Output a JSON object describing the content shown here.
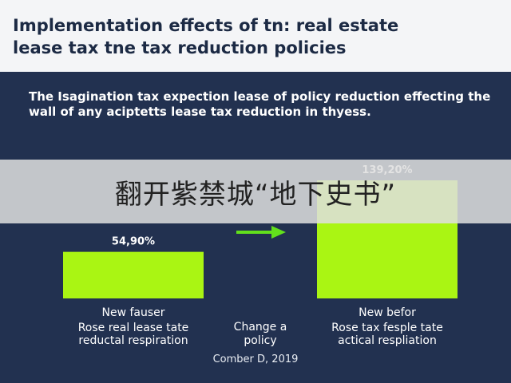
{
  "title": "Implementation effects of tn: real estate\nlease tax tne tax reduction policies",
  "subtitle": "The Isagination tax expection lease of policy reduction effecting the wall of any aciptetts lease tax reduction in thyess.",
  "banner_text": "翻开紫禁城“地下史书”",
  "footer": "Comber D, 2019",
  "colors": {
    "bar": "#aaf513",
    "panel": "#223150",
    "arrow": "#62e01c",
    "text": "#ffffff"
  },
  "arrow_icon": "right-arrow-icon",
  "arrow_label": [
    "Change a",
    "policy"
  ],
  "chart_data": {
    "type": "bar",
    "categories": [
      "New fauser",
      "New befor"
    ],
    "category_sublabels": [
      [
        "Rose real lease tate",
        "reductal respiration"
      ],
      [
        "Rose tax fesple tate",
        "actical respliation"
      ]
    ],
    "values": [
      54.9,
      139.2
    ],
    "data_labels": [
      "54,90%",
      "139,20%"
    ],
    "ylim": [
      0,
      139.2
    ],
    "grid": false
  }
}
